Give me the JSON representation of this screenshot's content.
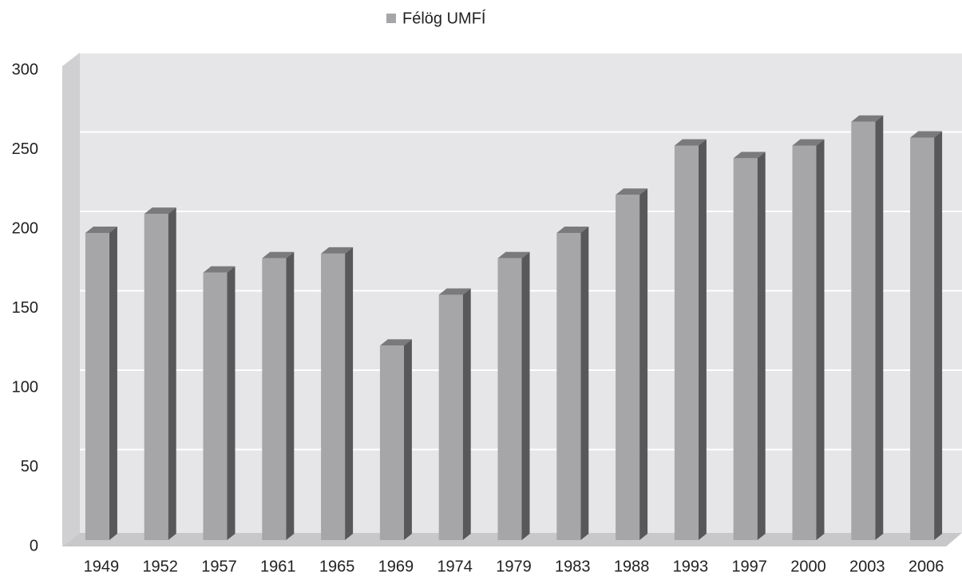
{
  "chart_data": {
    "type": "bar3d",
    "categories": [
      "1949",
      "1952",
      "1957",
      "1961",
      "1965",
      "1969",
      "1974",
      "1979",
      "1983",
      "1988",
      "1993",
      "1997",
      "2000",
      "2003",
      "2006"
    ],
    "series": [
      {
        "name": "Félög UMFÍ",
        "color": "#a6a6a8",
        "values": [
          195,
          207,
          170,
          179,
          182,
          124,
          156,
          179,
          195,
          219,
          250,
          242,
          250,
          265,
          255
        ]
      }
    ],
    "ylim": [
      0,
      300
    ],
    "yticks": [
      0,
      50,
      100,
      150,
      200,
      250,
      300
    ],
    "grid": true,
    "legend": "top"
  }
}
